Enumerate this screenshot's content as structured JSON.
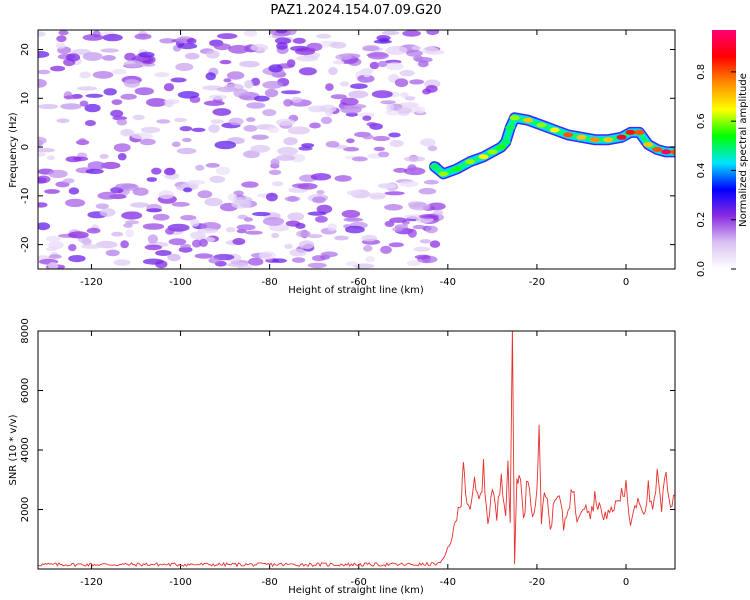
{
  "title": "PAZ1.2024.154.07.09.G20",
  "chart_data": [
    {
      "type": "heatmap",
      "xlabel": "Height of straight line (km)",
      "ylabel": "Frequency (Hz)",
      "xlim": [
        -132,
        11
      ],
      "ylim": [
        -25,
        24
      ],
      "xticks": [
        -120,
        -100,
        -80,
        -60,
        -40,
        -20,
        0
      ],
      "yticks": [
        -20,
        -10,
        0,
        10,
        20
      ],
      "colorbar": {
        "label": "Normalized spectral amplitude",
        "range": [
          0,
          0.97
        ],
        "ticks": [
          "0.0",
          "0.2",
          "0.4",
          "0.6",
          "0.8"
        ],
        "colormap": [
          "#ffffff",
          "#d9c2f2",
          "#8a2be2",
          "#0000ff",
          "#00e5ff",
          "#00ff00",
          "#ffff00",
          "#ff8c00",
          "#ff0000",
          "#ff0077"
        ]
      },
      "noise_region": {
        "x": [
          -132,
          -42
        ],
        "y": [
          -25,
          24
        ],
        "amplitude": [
          0.05,
          0.25
        ]
      },
      "signal_track": {
        "x": [
          -43,
          -41,
          -38,
          -35,
          -32,
          -30,
          -28,
          -27,
          -26,
          -25,
          -22,
          -19,
          -16,
          -13,
          -10,
          -7,
          -4,
          -1,
          1,
          3,
          5,
          7,
          9,
          11
        ],
        "y": [
          -4,
          -5.5,
          -4.5,
          -3,
          -2,
          -1,
          0,
          1,
          4,
          6,
          5.5,
          4.5,
          3.5,
          2.5,
          2,
          1.5,
          1.5,
          2,
          3,
          3,
          0.5,
          -0.5,
          -1,
          -1
        ],
        "amplitude": [
          0.5,
          0.6,
          0.55,
          0.6,
          0.65,
          0.6,
          0.55,
          0.5,
          0.5,
          0.6,
          0.7,
          0.6,
          0.65,
          0.8,
          0.7,
          0.75,
          0.7,
          0.9,
          0.85,
          0.8,
          0.7,
          0.8,
          0.95,
          0.8
        ]
      }
    },
    {
      "type": "line",
      "xlabel": "Height of straight line (km)",
      "ylabel": "SNR (10 * v/v)",
      "xlim": [
        -132,
        11
      ],
      "ylim": [
        0,
        8000
      ],
      "xticks": [
        -120,
        -100,
        -80,
        -60,
        -40,
        -20,
        0
      ],
      "yticks": [
        2000,
        4000,
        6000,
        8000
      ],
      "series": [
        {
          "color": "#e8302b",
          "x": [
            -132,
            -120,
            -100,
            -80,
            -60,
            -45,
            -42,
            -41,
            -40,
            -39,
            -38,
            -37,
            -36.5,
            -36,
            -35,
            -34,
            -33,
            -32,
            -31,
            -30,
            -29,
            -28,
            -27,
            -26.5,
            -26,
            -25.5,
            -25,
            -24.5,
            -24,
            -23,
            -22,
            -21,
            -20,
            -19.5,
            -19,
            -18,
            -17,
            -16,
            -15,
            -14,
            -13,
            -12,
            -11,
            -10,
            -9,
            -8,
            -7,
            -6,
            -5,
            -4,
            -3,
            -2,
            -1,
            0,
            1,
            2,
            3,
            4,
            5,
            6,
            7,
            8,
            9,
            10,
            11
          ],
          "y": [
            150,
            150,
            150,
            150,
            150,
            150,
            180,
            300,
            700,
            1100,
            1700,
            2400,
            3900,
            2600,
            1800,
            2900,
            2200,
            3300,
            1600,
            2700,
            1700,
            3200,
            2000,
            3700,
            1400,
            8000,
            200,
            3000,
            3500,
            1600,
            3200,
            1900,
            2500,
            5100,
            1600,
            2700,
            1400,
            2200,
            2500,
            1400,
            2100,
            2700,
            1700,
            2100,
            2300,
            1800,
            2400,
            2200,
            1600,
            2000,
            1900,
            2300,
            2500,
            2700,
            1500,
            2200,
            2400,
            1900,
            2700,
            1800,
            3100,
            2000,
            3200,
            2200,
            2500
          ]
        }
      ]
    }
  ]
}
